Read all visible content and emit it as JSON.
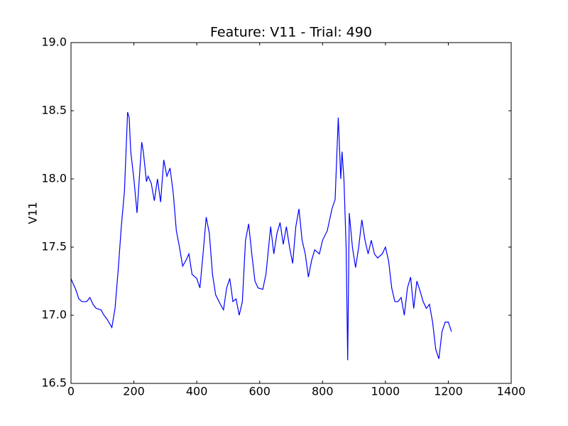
{
  "chart_data": {
    "type": "line",
    "title": "Feature: V11 - Trial: 490",
    "ylabel": "V11",
    "x": [
      0,
      5,
      15,
      25,
      35,
      50,
      60,
      70,
      80,
      95,
      105,
      115,
      125,
      130,
      140,
      150,
      160,
      170,
      175,
      180,
      185,
      190,
      200,
      210,
      220,
      225,
      230,
      240,
      245,
      255,
      265,
      275,
      285,
      295,
      305,
      315,
      325,
      335,
      345,
      355,
      365,
      375,
      385,
      400,
      410,
      420,
      430,
      440,
      450,
      460,
      475,
      485,
      495,
      505,
      515,
      525,
      535,
      545,
      555,
      565,
      575,
      585,
      595,
      610,
      620,
      635,
      645,
      655,
      665,
      675,
      685,
      695,
      705,
      715,
      725,
      735,
      745,
      755,
      765,
      775,
      790,
      800,
      815,
      830,
      840,
      850,
      858,
      862,
      868,
      875,
      880,
      885,
      895,
      905,
      915,
      925,
      935,
      945,
      955,
      965,
      975,
      990,
      1000,
      1010,
      1020,
      1030,
      1040,
      1050,
      1060,
      1070,
      1080,
      1090,
      1100,
      1110,
      1120,
      1130,
      1140,
      1150,
      1160,
      1170,
      1180,
      1190,
      1200,
      1210
    ],
    "series": [
      {
        "color": "#0000ff",
        "values": [
          17.27,
          17.24,
          17.19,
          17.12,
          17.1,
          17.1,
          17.13,
          17.08,
          17.05,
          17.04,
          17.0,
          16.97,
          16.93,
          16.91,
          17.05,
          17.33,
          17.65,
          17.91,
          18.2,
          18.49,
          18.45,
          18.2,
          18.0,
          17.75,
          18.1,
          18.27,
          18.2,
          17.98,
          18.02,
          17.97,
          17.84,
          18.0,
          17.83,
          18.14,
          18.02,
          18.08,
          17.9,
          17.62,
          17.5,
          17.36,
          17.4,
          17.45,
          17.3,
          17.27,
          17.2,
          17.45,
          17.72,
          17.6,
          17.3,
          17.15,
          17.08,
          17.04,
          17.2,
          17.27,
          17.1,
          17.12,
          17.0,
          17.1,
          17.55,
          17.67,
          17.45,
          17.25,
          17.2,
          17.19,
          17.3,
          17.65,
          17.45,
          17.6,
          17.68,
          17.52,
          17.65,
          17.5,
          17.38,
          17.65,
          17.78,
          17.55,
          17.45,
          17.28,
          17.4,
          17.48,
          17.45,
          17.55,
          17.62,
          17.78,
          17.85,
          18.45,
          18.0,
          18.2,
          18.0,
          17.5,
          16.67,
          17.75,
          17.5,
          17.35,
          17.5,
          17.7,
          17.55,
          17.45,
          17.55,
          17.45,
          17.42,
          17.45,
          17.5,
          17.4,
          17.2,
          17.1,
          17.1,
          17.13,
          17.0,
          17.2,
          17.28,
          17.05,
          17.25,
          17.18,
          17.1,
          17.05,
          17.08,
          16.95,
          16.75,
          16.68,
          16.88,
          16.95,
          16.95,
          16.88
        ]
      }
    ],
    "xlim": [
      0,
      1400
    ],
    "xticks": [
      0,
      200,
      400,
      600,
      800,
      1000,
      1200,
      1400
    ],
    "ylim": [
      16.5,
      19
    ],
    "yticks": [
      16.5,
      {
        "value": 17,
        "label": "17.0"
      },
      17.5,
      {
        "value": 18,
        "label": "18.0"
      },
      18.5,
      {
        "value": 19,
        "label": "19.0"
      }
    ]
  }
}
